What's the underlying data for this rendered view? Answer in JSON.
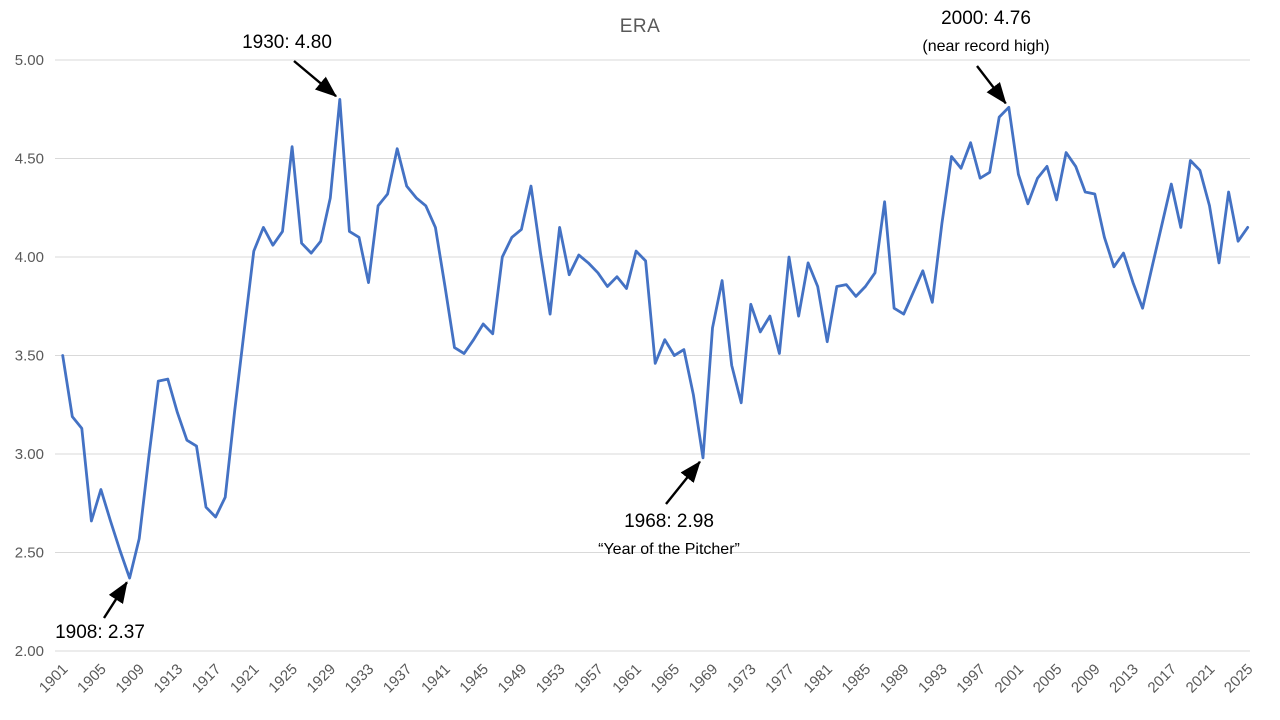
{
  "title": "ERA",
  "colors": {
    "line": "#4472C4",
    "grid": "#D9D9D9",
    "axis_text": "#595959",
    "annotation_text": "#000000",
    "background": "#FFFFFF"
  },
  "y_axis": {
    "tick_labels": [
      "5.00",
      "4.50",
      "4.00",
      "3.50",
      "3.00",
      "2.50",
      "2.00"
    ],
    "min": 2.0,
    "max": 5.0,
    "step": 0.5
  },
  "x_axis": {
    "tick_years": [
      1901,
      1905,
      1909,
      1913,
      1917,
      1921,
      1925,
      1929,
      1933,
      1937,
      1941,
      1945,
      1949,
      1953,
      1957,
      1961,
      1965,
      1969,
      1973,
      1977,
      1981,
      1985,
      1989,
      1993,
      1997,
      2001,
      2005,
      2009,
      2013,
      2017,
      2021,
      2025
    ]
  },
  "annotations": [
    {
      "id": "a1930",
      "lines": [
        "1930: 4.80"
      ],
      "year": 1930,
      "value": 4.8
    },
    {
      "id": "a2000",
      "lines": [
        "2000: 4.76",
        "(near record high)"
      ],
      "year": 2000,
      "value": 4.76
    },
    {
      "id": "a1968",
      "lines": [
        "1968: 2.98",
        "“Year of the Pitcher”"
      ],
      "year": 1968,
      "value": 2.98
    },
    {
      "id": "a1908",
      "lines": [
        "1908: 2.37"
      ],
      "year": 1908,
      "value": 2.37
    }
  ],
  "chart_data": {
    "type": "line",
    "title": "ERA",
    "xlabel": "",
    "ylabel": "",
    "ylim": [
      2.0,
      5.0
    ],
    "grid": true,
    "legend": false,
    "x_start": 1901,
    "x_step": 1,
    "x_end": 2025,
    "x_tick_interval": 4,
    "series": [
      {
        "name": "ERA",
        "color": "#4472C4",
        "values": [
          3.5,
          3.19,
          3.13,
          2.66,
          2.82,
          2.66,
          2.51,
          2.37,
          2.57,
          2.98,
          3.37,
          3.38,
          3.21,
          3.07,
          3.04,
          2.73,
          2.68,
          2.78,
          3.22,
          3.63,
          4.03,
          4.15,
          4.06,
          4.13,
          4.56,
          4.07,
          4.02,
          4.08,
          4.3,
          4.8,
          4.13,
          4.1,
          3.87,
          4.26,
          4.32,
          4.55,
          4.36,
          4.3,
          4.26,
          4.15,
          3.85,
          3.54,
          3.51,
          3.58,
          3.66,
          3.61,
          4.0,
          4.1,
          4.14,
          4.36,
          4.02,
          3.71,
          4.15,
          3.91,
          4.01,
          3.97,
          3.92,
          3.85,
          3.9,
          3.84,
          4.03,
          3.98,
          3.46,
          3.58,
          3.5,
          3.53,
          3.3,
          2.98,
          3.64,
          3.88,
          3.45,
          3.26,
          3.76,
          3.62,
          3.7,
          3.51,
          4.0,
          3.7,
          3.97,
          3.85,
          3.57,
          3.85,
          3.86,
          3.8,
          3.85,
          3.92,
          4.28,
          3.74,
          3.71,
          3.82,
          3.93,
          3.77,
          4.17,
          4.51,
          4.45,
          4.58,
          4.4,
          4.43,
          4.71,
          4.76,
          4.42,
          4.27,
          4.4,
          4.46,
          4.29,
          4.53,
          4.46,
          4.33,
          4.32,
          4.1,
          3.95,
          4.02,
          3.87,
          3.74,
          3.95,
          4.16,
          4.37,
          4.15,
          4.49,
          4.44,
          4.26,
          3.97,
          4.33,
          4.08,
          4.15
        ]
      }
    ]
  }
}
